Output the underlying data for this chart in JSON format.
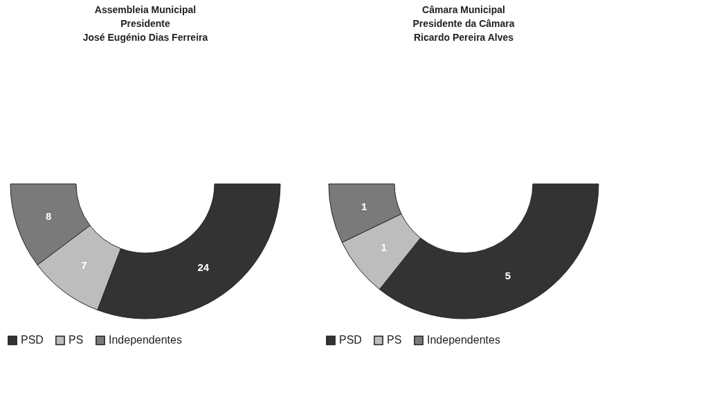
{
  "chart_data": [
    {
      "type": "donut",
      "title": "Assembleia Municipal\nPresidente\nJosé Eugénio Dias Ferreira",
      "categories": [
        "PSD",
        "PS",
        "Independentes"
      ],
      "values": [
        24,
        7,
        8
      ],
      "colors": [
        "#333333",
        "#bdbdbd",
        "#7a7a7a"
      ],
      "data_labels": true,
      "legend": "bottom left"
    },
    {
      "type": "donut",
      "title": "Câmara Municipal\nPresidente da Câmara\nRicardo Pereira Alves",
      "categories": [
        "PSD",
        "PS",
        "Independentes"
      ],
      "values": [
        5,
        1,
        1
      ],
      "colors": [
        "#333333",
        "#bdbdbd",
        "#7a7a7a"
      ],
      "data_labels": true,
      "legend": "bottom left"
    }
  ]
}
